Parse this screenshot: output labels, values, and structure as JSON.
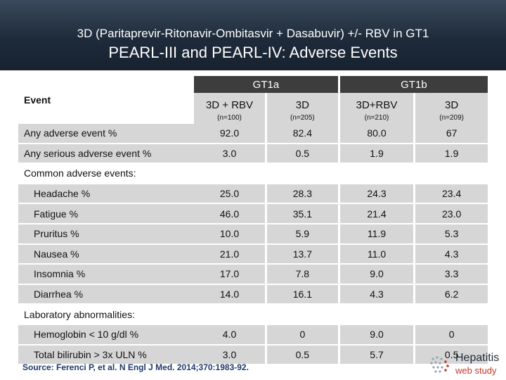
{
  "header": {
    "line1": "3D (Paritaprevir-Ritonavir-Ombitasvir + Dasabuvir) +/- RBV in GT1",
    "line2": "PEARL-III and PEARL-IV: Adverse Events"
  },
  "table": {
    "event_header": "Event",
    "group1": "GT1a",
    "group2": "GT1b",
    "arms": [
      {
        "label": "3D + RBV",
        "n": "(n=100)"
      },
      {
        "label": "3D",
        "n": "(n=205)"
      },
      {
        "label": "3D+RBV",
        "n": "(n=210)"
      },
      {
        "label": "3D",
        "n": "(n=209)"
      }
    ],
    "any_ae": {
      "label": "Any adverse event  %",
      "v": [
        "92.0",
        "82.4",
        "80.0",
        "67"
      ]
    },
    "serious_ae": {
      "label": "Any serious adverse event %",
      "v": [
        "3.0",
        "0.5",
        "1.9",
        "1.9"
      ]
    },
    "common_heading": "Common adverse events:",
    "headache": {
      "label": "Headache %",
      "v": [
        "25.0",
        "28.3",
        "24.3",
        "23.4"
      ]
    },
    "fatigue": {
      "label": "Fatigue %",
      "v": [
        "46.0",
        "35.1",
        "21.4",
        "23.0"
      ]
    },
    "pruritus": {
      "label": "Pruritus %",
      "v": [
        "10.0",
        "5.9",
        "11.9",
        "5.3"
      ]
    },
    "nausea": {
      "label": "Nausea %",
      "v": [
        "21.0",
        "13.7",
        "11.0",
        "4.3"
      ]
    },
    "insomnia": {
      "label": "Insomnia %",
      "v": [
        "17.0",
        "7.8",
        "9.0",
        "3.3"
      ]
    },
    "diarrhea": {
      "label": "Diarrhea %",
      "v": [
        "14.0",
        "16.1",
        "4.3",
        "6.2"
      ]
    },
    "lab_heading": "Laboratory abnormalities:",
    "hemoglobin": {
      "label": "Hemoglobin < 10 g/dl %",
      "v": [
        "4.0",
        "0",
        "9.0",
        "0"
      ]
    },
    "bilirubin": {
      "label": "Total bilirubin > 3x ULN %",
      "v": [
        "3.0",
        "0.5",
        "5.7",
        "0.5"
      ]
    }
  },
  "footer": {
    "source": "Source: Ferenci P, et al. N Engl J Med. 2014;370:1983-92.",
    "logo_line1": "Hepatitis",
    "logo_line2": "web study",
    "logo_icon": "hepatitis-logo-icon"
  }
}
